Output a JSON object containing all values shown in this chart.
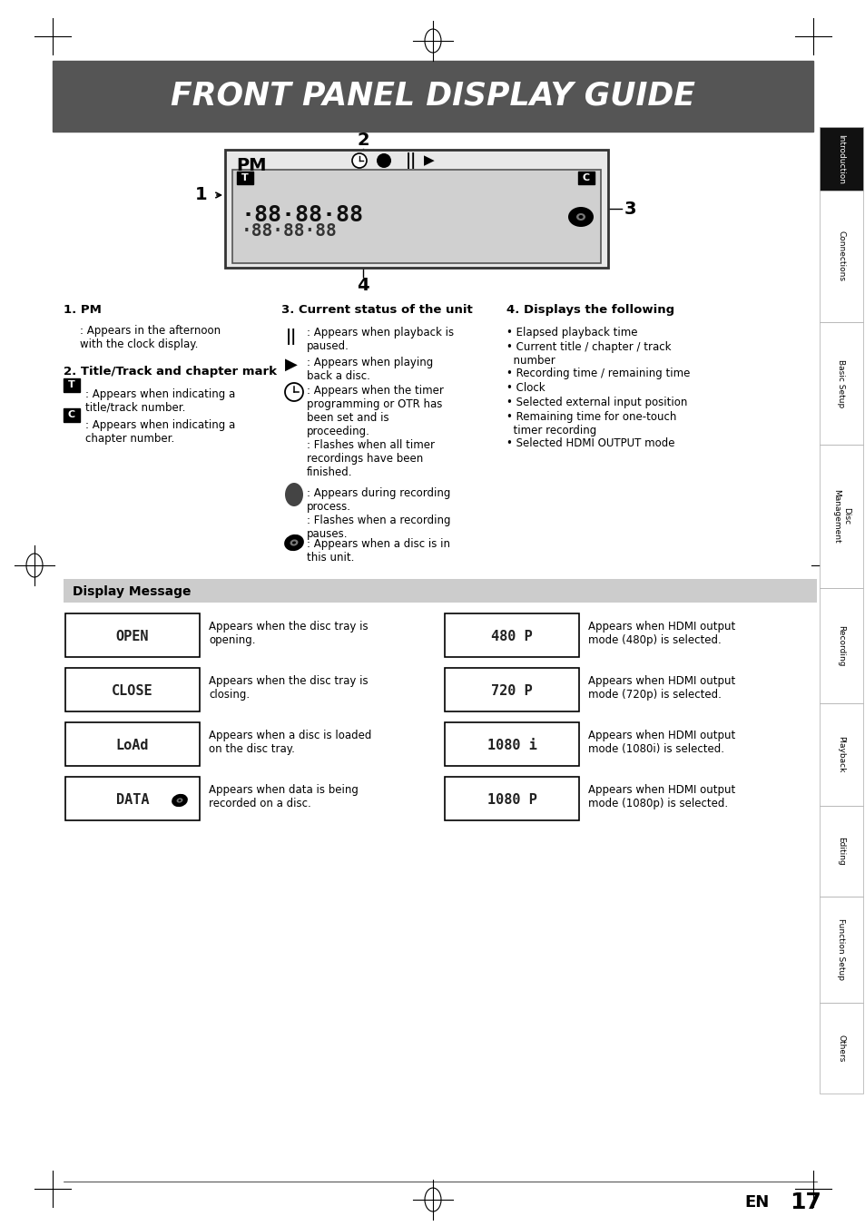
{
  "title": "FRONT PANEL DISPLAY GUIDE",
  "title_bg": "#555555",
  "title_fg": "#ffffff",
  "page_bg": "#ffffff",
  "footer_en": "EN",
  "footer_page": "17",
  "section1_title": "1. PM",
  "section1_text": ": Appears in the afternoon\nwith the clock display.",
  "section2_title": "2. Title/Track and chapter mark",
  "section2_t_text": ": Appears when indicating a\ntitle/track number.",
  "section2_c_text": ": Appears when indicating a\nchapter number.",
  "section3_title": "3. Current status of the unit",
  "section4_title": "4. Displays the following",
  "section4_items": [
    "Elapsed playback time",
    "Current title / chapter / track\nnumber",
    "Recording time / remaining time",
    "Clock",
    "Selected external input position",
    "Remaining time for one-touch\ntimer recording",
    "Selected HDMI OUTPUT mode"
  ],
  "display_section_header": "Display Message",
  "descs_left": [
    "Appears when the disc tray is\nopening.",
    "Appears when the disc tray is\nclosing.",
    "Appears when a disc is loaded\non the disc tray.",
    "Appears when data is being\nrecorded on a disc."
  ],
  "descs_right": [
    "Appears when HDMI output\nmode (480p) is selected.",
    "Appears when HDMI output\nmode (720p) is selected.",
    "Appears when HDMI output\nmode (1080i) is selected.",
    "Appears when HDMI output\nmode (1080p) is selected."
  ],
  "lcd_left": [
    "OPEN",
    "CLOSE",
    "LoAd",
    "DATA"
  ],
  "lcd_right": [
    "480 P",
    "720 P",
    "1080 i",
    "1080 P"
  ],
  "sidebar_sections": [
    [
      "Introduction",
      140,
      210
    ],
    [
      "Connections",
      210,
      355
    ],
    [
      "Basic Setup",
      355,
      490
    ],
    [
      "Disc\nManagement",
      490,
      648
    ],
    [
      "Recording",
      648,
      775
    ],
    [
      "Playback",
      775,
      888
    ],
    [
      "Editing",
      888,
      988
    ],
    [
      "Function Setup",
      988,
      1105
    ],
    [
      "Others",
      1105,
      1205
    ]
  ]
}
